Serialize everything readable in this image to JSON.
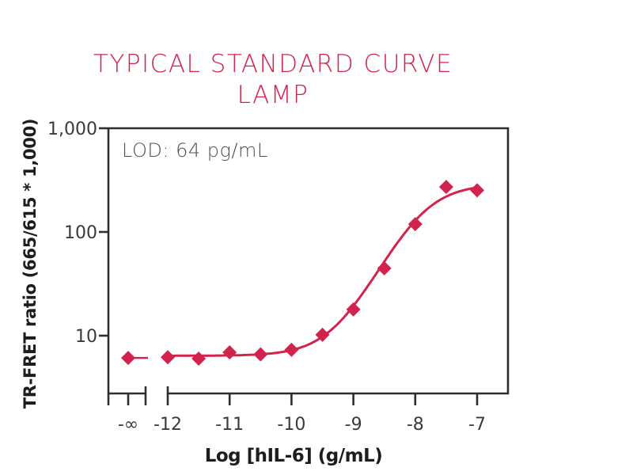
{
  "title": {
    "line1": "TYPICAL STANDARD CURVE",
    "line2": "LAMP"
  },
  "colors": {
    "accent": "#d2234c",
    "axis": "#2e2e2e",
    "tick_text": "#3a3a3a",
    "label_text": "#1d1d1d",
    "annotation_text": "#4f4f4f"
  },
  "chart_data": {
    "type": "scatter",
    "title": "TYPICAL STANDARD CURVE LAMP",
    "xlabel": "Log [hIL-6] (g/mL)",
    "ylabel": "TR-FRET ratio (665/615 * 1,000)",
    "annotation": "LOD: 64 pg/mL",
    "lod": "64 pg/mL",
    "y_scale": "log",
    "y_range": [
      2.8,
      1000
    ],
    "grid": false,
    "legend": "none",
    "marker": "diamond",
    "x_axis_break": {
      "between": [
        "-∞",
        "-12"
      ]
    },
    "y_ticks": [
      {
        "label": "1,000",
        "value": 1000
      },
      {
        "label": "100",
        "value": 100
      },
      {
        "label": "10",
        "value": 10
      }
    ],
    "x_ticks": [
      {
        "label": "-∞",
        "x": "-inf"
      },
      {
        "label": "-12",
        "x": -12
      },
      {
        "label": "-11",
        "x": -11
      },
      {
        "label": "-10",
        "x": -10
      },
      {
        "label": "-9",
        "x": -9
      },
      {
        "label": "-8",
        "x": -8
      },
      {
        "label": "-7",
        "x": -7
      }
    ],
    "points": [
      {
        "x": "-inf",
        "y": 6.1
      },
      {
        "x": -12,
        "y": 6.2
      },
      {
        "x": -11.5,
        "y": 6.0
      },
      {
        "x": -11,
        "y": 6.9
      },
      {
        "x": -10.5,
        "y": 6.6
      },
      {
        "x": -10,
        "y": 7.3
      },
      {
        "x": -9.5,
        "y": 10.2
      },
      {
        "x": -9,
        "y": 17.9
      },
      {
        "x": -8.5,
        "y": 44.6
      },
      {
        "x": -8,
        "y": 119
      },
      {
        "x": -7.5,
        "y": 272
      },
      {
        "x": -7,
        "y": 252
      }
    ],
    "fit_4pl": {
      "bottom": 6.4,
      "top": 290,
      "hill": 1.2,
      "log_ec50": -7.9
    }
  }
}
